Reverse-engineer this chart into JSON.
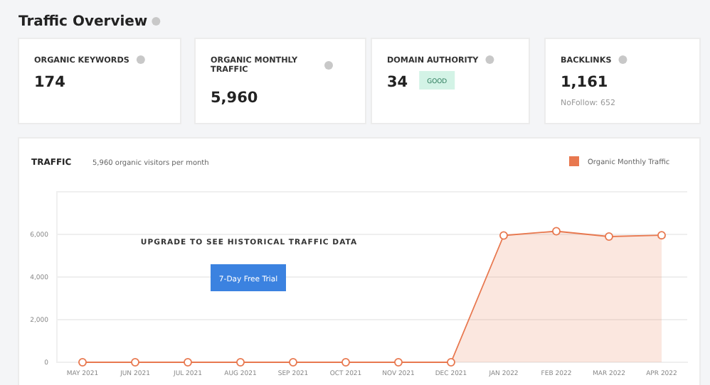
{
  "chart_data": [
    {
      "type": "other",
      "title": "Traffic Overview",
      "annotations": [
        "ORGANIC KEYWORDS",
        "174",
        "ORGANIC MONTHLY TRAFFIC",
        "5,960",
        "DOMAIN AUTHORITY",
        "34",
        "GOOD",
        "BACKLINKS",
        "1,161",
        "NoFollow: 652"
      ]
    },
    {
      "type": "area",
      "title": "TRAFFIC",
      "subtitle": "5,960 organic visitors per month",
      "categories": [
        "MAY 2021",
        "JUN 2021",
        "JUL 2021",
        "AUG 2021",
        "SEP 2021",
        "OCT 2021",
        "NOV 2021",
        "DEC 2021",
        "JAN 2022",
        "FEB 2022",
        "MAR 2022",
        "APR 2022"
      ],
      "series": [
        {
          "name": "Organic Monthly Traffic",
          "color": "#e8784f",
          "values": [
            0,
            0,
            0,
            0,
            0,
            0,
            0,
            0,
            5950,
            6150,
            5900,
            5960
          ]
        }
      ],
      "ylim": [
        0,
        8000
      ],
      "yticks": [
        {
          "value": 0,
          "label": "0"
        },
        {
          "value": 2000,
          "label": "2,000"
        },
        {
          "value": 4000,
          "label": "4,000"
        },
        {
          "value": 6000,
          "label": "6,000"
        },
        {
          "value": 8000,
          "label": null
        }
      ],
      "grid": "y",
      "legend": "top right",
      "marker": "circle",
      "annotations": [
        "UPGRADE TO SEE HISTORICAL TRAFFIC DATA",
        "7-Day Free Trial"
      ]
    }
  ]
}
